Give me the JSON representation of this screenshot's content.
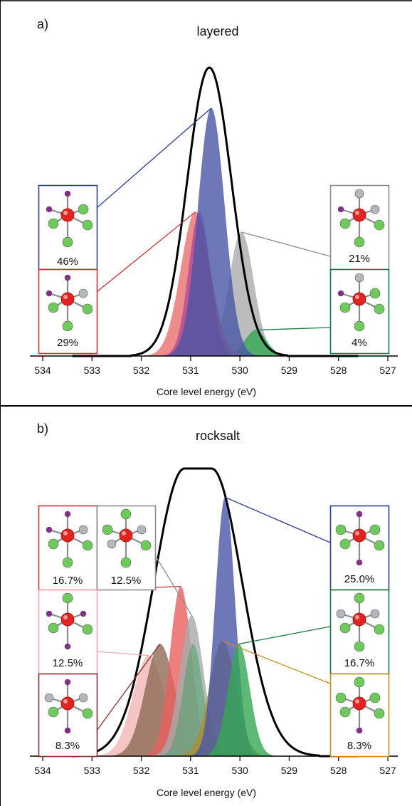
{
  "chart_data": [
    {
      "type": "area",
      "panel_label": "a)",
      "title": "layered",
      "xlabel": "Core level energy (eV)",
      "xlim": [
        534.2,
        527
      ],
      "x_ticks": [
        "534",
        "533",
        "532",
        "531",
        "530",
        "529",
        "528",
        "527"
      ],
      "total_envelope": {
        "center": 530.62,
        "sigma": 0.45,
        "amplitude": 1.0,
        "color": "#000000"
      },
      "series": [
        {
          "percent": "46%",
          "center": 530.58,
          "sigma": 0.27,
          "amplitude": 0.86,
          "color": "#4a56a8",
          "border_color": "#2c3e90",
          "ligands": [
            "purple",
            "purple",
            "green",
            "green",
            "green",
            "green"
          ]
        },
        {
          "percent": "29%",
          "center": 530.9,
          "sigma": 0.3,
          "amplitude": 0.5,
          "color": "#e8706e",
          "border_color": "#d62c33",
          "ligands": [
            "purple",
            "purple",
            "gray",
            "green",
            "green",
            "green"
          ]
        },
        {
          "percent": "21%",
          "center": 529.97,
          "sigma": 0.25,
          "amplitude": 0.43,
          "color": "#a9abae",
          "border_color": "#8c8c8c",
          "ligands": [
            "gray",
            "purple",
            "gray",
            "green",
            "green",
            "green"
          ]
        },
        {
          "percent": "4%",
          "center": 529.68,
          "sigma": 0.22,
          "amplitude": 0.09,
          "color": "#35a852",
          "border_color": "#1b7a44",
          "ligands": [
            "gray",
            "purple",
            "green",
            "green",
            "green",
            "green"
          ]
        },
        {
          "center": 530.82,
          "sigma": 0.22,
          "amplitude": 0.5,
          "color": "#9a2a9a",
          "overlap": true
        }
      ]
    },
    {
      "type": "area",
      "panel_label": "b)",
      "title": "rocksalt",
      "xlabel": "Core level energy (eV)",
      "xlim": [
        534.2,
        527
      ],
      "x_ticks": [
        "534",
        "533",
        "532",
        "531",
        "530",
        "529",
        "528",
        "527"
      ],
      "total_envelope": {
        "center": 530.85,
        "sigma": 0.62,
        "amplitude": 1.0,
        "flat": 0.55,
        "color": "#000000"
      },
      "series": [
        {
          "percent": "16.7%",
          "center": 531.2,
          "sigma": 0.22,
          "amplitude": 0.59,
          "color": "#e8605e",
          "border_color": "#d62c33",
          "ligands": [
            "purple",
            "purple",
            "gray",
            "green",
            "green",
            "green"
          ]
        },
        {
          "percent": "12.5%",
          "center": 530.98,
          "sigma": 0.24,
          "amplitude": 0.49,
          "color": "#a7a9ac",
          "border_color": "#8c8c8c",
          "ligands": [
            "green",
            "green",
            "gray",
            "gray",
            "green",
            "green"
          ]
        },
        {
          "percent": "12.5%",
          "center": 531.85,
          "sigma": 0.32,
          "amplitude": 0.35,
          "color": "#f2b6b8",
          "border_color": "#f4a7ad",
          "ligands": [
            "green",
            "purple",
            "purple",
            "green",
            "green",
            "purple"
          ]
        },
        {
          "percent": "8.3%",
          "center": 531.62,
          "sigma": 0.3,
          "amplitude": 0.39,
          "color": "#8f6a55",
          "border_color": "#8b2e2e",
          "ligands": [
            "purple",
            "gray",
            "gray",
            "green",
            "green",
            "purple"
          ]
        },
        {
          "percent": "25.0%",
          "center": 530.3,
          "sigma": 0.2,
          "amplitude": 0.9,
          "color": "#4a56a8",
          "border_color": "#2c3e90",
          "ligands": [
            "purple",
            "green",
            "green",
            "green",
            "green",
            "purple"
          ]
        },
        {
          "percent": "16.7%",
          "center": 530.02,
          "sigma": 0.22,
          "amplitude": 0.39,
          "color": "#35a852",
          "border_color": "#1b7a44",
          "ligands": [
            "green",
            "gray",
            "gray",
            "green",
            "green",
            "green"
          ]
        },
        {
          "percent": "8.3%",
          "center": 530.35,
          "sigma": 0.27,
          "amplitude": 0.4,
          "color": "#a99030",
          "border_color": "#c58f21",
          "ligands": [
            "green",
            "green",
            "green",
            "green",
            "green",
            "purple"
          ]
        },
        {
          "center": 530.95,
          "sigma": 0.2,
          "amplitude": 0.39,
          "color": "#4aa36a",
          "overlap": true
        }
      ]
    }
  ]
}
